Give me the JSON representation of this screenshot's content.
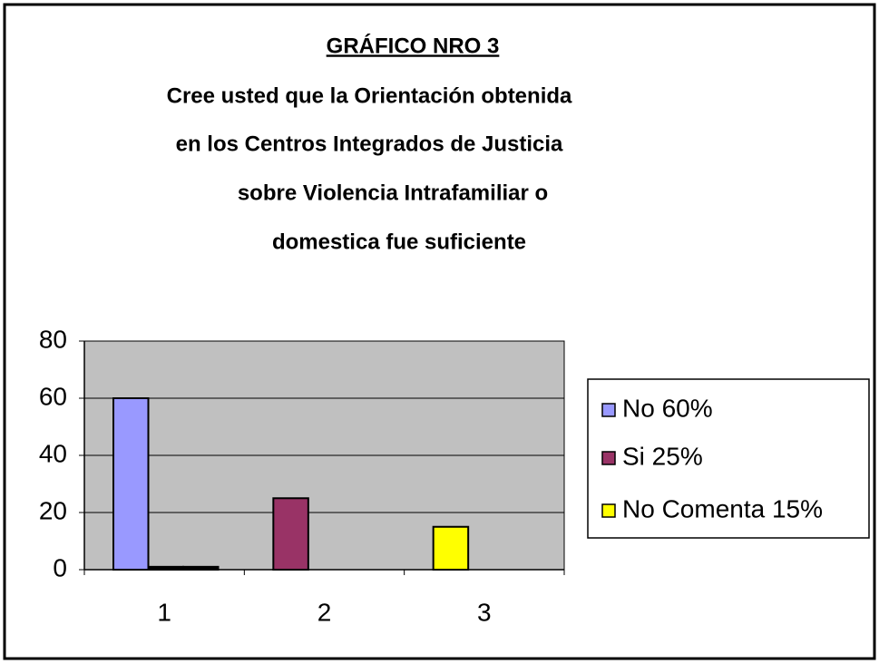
{
  "chart_data": {
    "type": "bar",
    "title": "GRÁFICO NRO 3",
    "subtitle": [
      "Cree usted que la Orientación obtenida",
      "en los Centros Integrados de Justicia",
      "sobre Violencia Intrafamiliar o",
      "domestica fue suficiente"
    ],
    "categories": [
      "1",
      "2",
      "3"
    ],
    "series": [
      {
        "values": [
          60,
          25,
          15
        ],
        "colors": [
          "#9999ff",
          "#993366",
          "#ffff00"
        ]
      },
      {
        "values": [
          1,
          null,
          null
        ],
        "color": "#000000"
      },
      {
        "values": [
          1,
          null,
          null
        ],
        "color": "#000000"
      }
    ],
    "legend": [
      "No 60%",
      "Si 25%",
      "No Comenta 15%"
    ],
    "ylim": [
      0,
      80
    ],
    "yticks": [
      0,
      20,
      40,
      60,
      80
    ],
    "grid": true,
    "plot_background": "#c0c0c0"
  }
}
